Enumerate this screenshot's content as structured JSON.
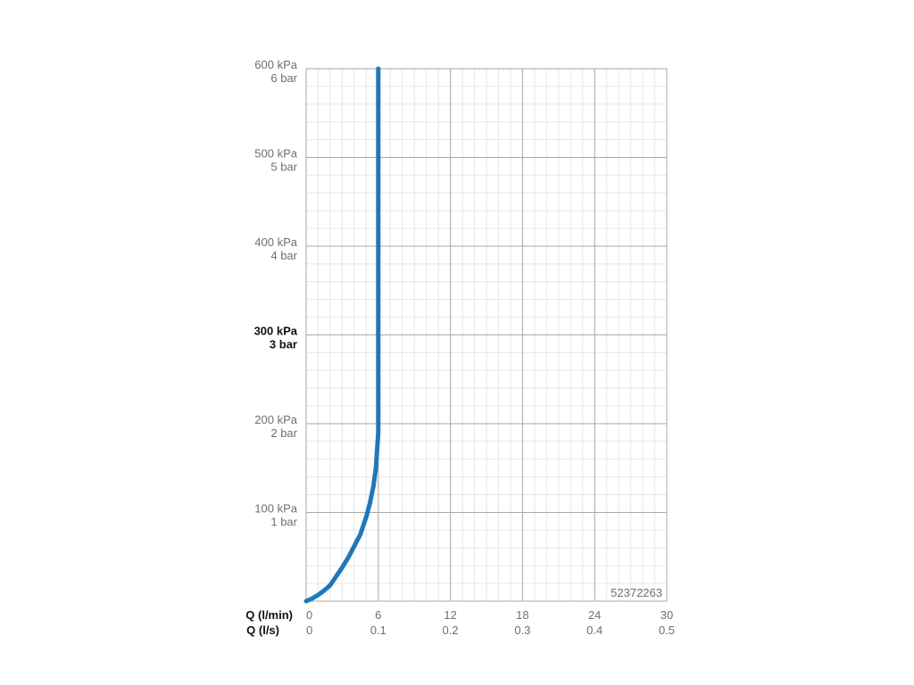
{
  "chart_data": {
    "type": "line",
    "title": "",
    "product_code": "52372263",
    "x_axis": {
      "primary_label": "Q (l/min)",
      "primary_ticks": [
        "0",
        "6",
        "12",
        "18",
        "24",
        "30"
      ],
      "secondary_label": "Q (l/s)",
      "secondary_ticks": [
        "0",
        "0.1",
        "0.2",
        "0.3",
        "0.4",
        "0.5"
      ],
      "range": [
        0,
        30
      ],
      "unit": "l/min"
    },
    "y_axis": {
      "ticks": [
        {
          "value": 100,
          "kpa": "100 kPa",
          "bar": "1 bar",
          "bold": false
        },
        {
          "value": 200,
          "kpa": "200 kPa",
          "bar": "2 bar",
          "bold": false
        },
        {
          "value": 300,
          "kpa": "300 kPa",
          "bar": "3 bar",
          "bold": true
        },
        {
          "value": 400,
          "kpa": "400 kPa",
          "bar": "4 bar",
          "bold": false
        },
        {
          "value": 500,
          "kpa": "500 kPa",
          "bar": "5 bar",
          "bold": false
        },
        {
          "value": 600,
          "kpa": "600 kPa",
          "bar": "6 bar",
          "bold": false
        }
      ],
      "range": [
        0,
        600
      ],
      "unit": "kPa"
    },
    "grid": true,
    "series": [
      {
        "color": "#1f78b8",
        "x": [
          0,
          0.5,
          1.0,
          1.5,
          2.0,
          2.5,
          3.0,
          3.5,
          4.0,
          4.5,
          5.0,
          5.3,
          5.6,
          5.8,
          6.0,
          6.0,
          6.0
        ],
        "y": [
          0,
          3,
          7,
          12,
          18,
          28,
          38,
          49,
          62,
          75,
          95,
          110,
          130,
          150,
          190,
          300,
          600
        ]
      }
    ]
  }
}
